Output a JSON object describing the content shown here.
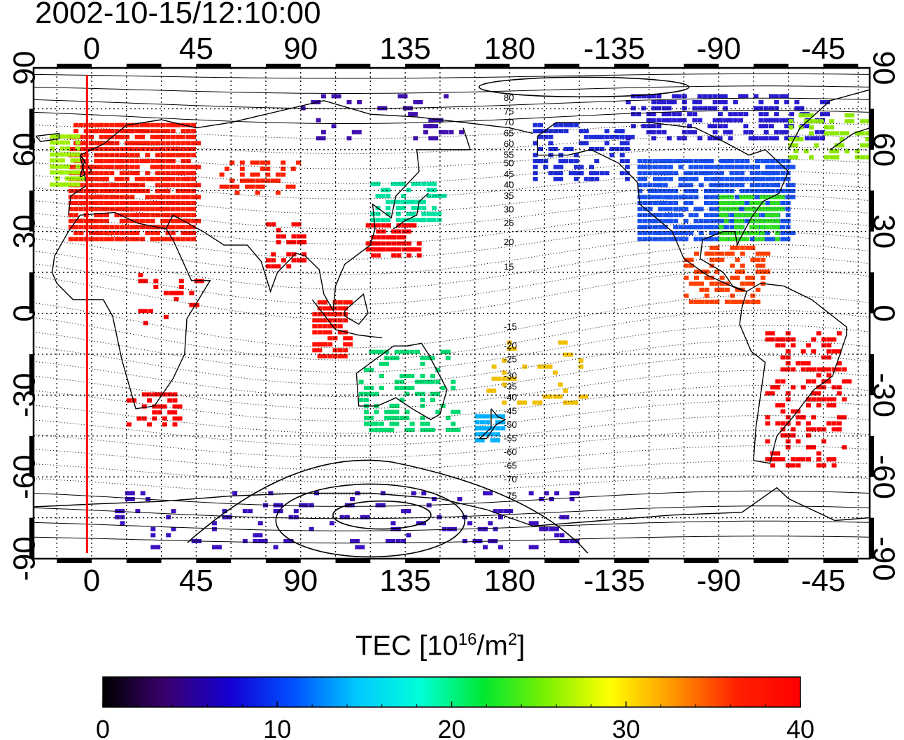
{
  "title": "2002-10-15/12:10:00",
  "colorbar": {
    "label_prefix": "TEC  [10",
    "label_exp1": "16",
    "label_mid": "/m",
    "label_exp2": "2",
    "label_suffix": "]",
    "ticks": [
      "0",
      "10",
      "20",
      "30",
      "40"
    ],
    "colors": [
      "#000000",
      "#3a0070",
      "#1400d2",
      "#0050ff",
      "#00c8ff",
      "#00ffd8",
      "#00e832",
      "#7cf000",
      "#ffff00",
      "#ff9600",
      "#ff2000",
      "#ff0000"
    ]
  },
  "axes": {
    "lon_tick_values": [
      0,
      45,
      90,
      135,
      180,
      -135,
      -90,
      -45
    ],
    "lon_tick_labels": [
      "0",
      "45",
      "90",
      "135",
      "180",
      "-135",
      "-90",
      "-45"
    ],
    "lat_tick_values": [
      90,
      60,
      30,
      0,
      -30,
      -60,
      -90
    ],
    "lat_tick_labels": [
      "90",
      "60",
      "30",
      "0",
      "-30",
      "-60",
      "-90"
    ],
    "lon_range": [
      -25,
      335
    ],
    "lat_range": [
      -90,
      90
    ],
    "grid": "dotted, every 15 degrees"
  },
  "terminator_longitude": -2,
  "contours": {
    "labels": [
      "80",
      "75",
      "70",
      "65",
      "60",
      "55",
      "50",
      "45",
      "40",
      "35",
      "30",
      "25",
      "20",
      "15",
      "-15",
      "-20",
      "-25",
      "-30",
      "-35",
      "-40",
      "-45",
      "-50",
      "-55",
      "-60",
      "-65",
      "-70",
      "-75"
    ]
  },
  "tec_regions": [
    {
      "name": "europe",
      "lon": [
        -10,
        45
      ],
      "lat": [
        28,
        72
      ],
      "color": "#ff1800",
      "density": 0.9
    },
    {
      "name": "n-atlantic-green",
      "lon": [
        -18,
        -5
      ],
      "lat": [
        48,
        66
      ],
      "color": "#9cf000",
      "density": 0.8
    },
    {
      "name": "central-asia",
      "lon": [
        55,
        90
      ],
      "lat": [
        45,
        58
      ],
      "color": "#ff2000",
      "density": 0.5
    },
    {
      "name": "india",
      "lon": [
        75,
        92
      ],
      "lat": [
        18,
        34
      ],
      "color": "#ff0000",
      "density": 0.35
    },
    {
      "name": "japan-north",
      "lon": [
        120,
        150
      ],
      "lat": [
        35,
        50
      ],
      "color": "#00e0a0",
      "density": 0.6
    },
    {
      "name": "japan-south",
      "lon": [
        118,
        140
      ],
      "lat": [
        22,
        34
      ],
      "color": "#ff0000",
      "density": 0.7
    },
    {
      "name": "se-asia",
      "lon": [
        95,
        110
      ],
      "lat": [
        -15,
        5
      ],
      "color": "#ff1000",
      "density": 0.7
    },
    {
      "name": "africa-east",
      "lon": [
        20,
        45
      ],
      "lat": [
        -5,
        15
      ],
      "color": "#ff0000",
      "density": 0.2
    },
    {
      "name": "africa-south",
      "lon": [
        15,
        35
      ],
      "lat": [
        -40,
        -28
      ],
      "color": "#ff0000",
      "density": 0.5
    },
    {
      "name": "australia",
      "lon": [
        115,
        155
      ],
      "lat": [
        -42,
        -12
      ],
      "color": "#00d870",
      "density": 0.35
    },
    {
      "name": "new-zealand",
      "lon": [
        165,
        178
      ],
      "lat": [
        -48,
        -35
      ],
      "color": "#00b0ff",
      "density": 0.6
    },
    {
      "name": "pacific-islands",
      "lon": [
        170,
        210
      ],
      "lat": [
        -32,
        -10
      ],
      "color": "#f0c000",
      "density": 0.2
    },
    {
      "name": "north-america",
      "lon": [
        235,
        300
      ],
      "lat": [
        28,
        58
      ],
      "color": "#1850f0",
      "density": 0.85
    },
    {
      "name": "us-east",
      "lon": [
        270,
        295
      ],
      "lat": [
        28,
        45
      ],
      "color": "#30e020",
      "density": 0.7
    },
    {
      "name": "alaska",
      "lon": [
        190,
        230
      ],
      "lat": [
        50,
        72
      ],
      "color": "#1e2cd8",
      "density": 0.5
    },
    {
      "name": "canada-north",
      "lon": [
        230,
        315
      ],
      "lat": [
        65,
        82
      ],
      "color": "#2a1cd0",
      "density": 0.45
    },
    {
      "name": "greenland",
      "lon": [
        300,
        335
      ],
      "lat": [
        58,
        75
      ],
      "color": "#8ce800",
      "density": 0.35
    },
    {
      "name": "central-america",
      "lon": [
        255,
        290
      ],
      "lat": [
        5,
        25
      ],
      "color": "#ff4000",
      "density": 0.5
    },
    {
      "name": "south-america",
      "lon": [
        290,
        325
      ],
      "lat": [
        -55,
        -5
      ],
      "color": "#ff0000",
      "density": 0.35
    },
    {
      "name": "antarctica",
      "lon": [
        10,
        210
      ],
      "lat": [
        -85,
        -65
      ],
      "color": "#3c10c0",
      "density": 0.12
    },
    {
      "name": "arctic-mid",
      "lon": [
        90,
        160
      ],
      "lat": [
        65,
        82
      ],
      "color": "#4010b0",
      "density": 0.1
    }
  ]
}
